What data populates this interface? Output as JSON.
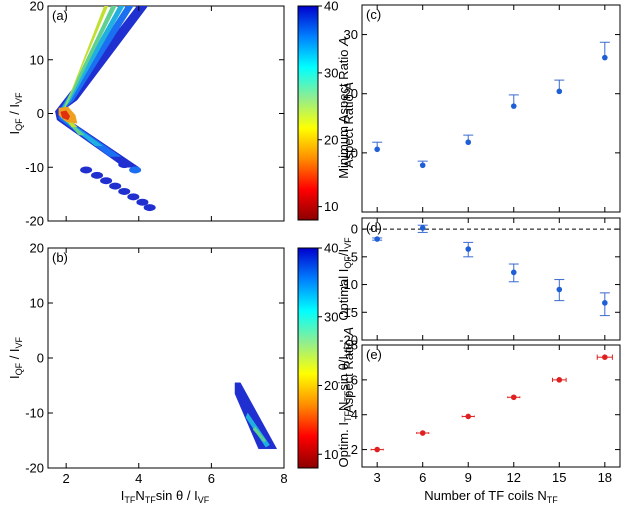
{
  "figure": {
    "panel_labels": [
      "(a)",
      "(b)",
      "(c)",
      "(d)",
      "(e)"
    ]
  },
  "chart_data": [
    {
      "id": "a",
      "type": "heatmap",
      "title": "(a)",
      "xlabel": "",
      "ylabel_main": "I",
      "ylabel_sub1": "QF",
      "ylabel_mid": " / I",
      "ylabel_sub2": "VF",
      "xlim": [
        1.5,
        8
      ],
      "ylim": [
        -20,
        20
      ],
      "xticks": [
        2,
        4,
        6,
        8
      ],
      "xtick_labels": [
        "",
        "",
        "",
        ""
      ],
      "yticks": [
        -20,
        -10,
        0,
        10,
        20
      ],
      "ytick_labels": [
        "-20",
        "-10",
        "0",
        "10",
        "20"
      ],
      "bands": [
        {
          "color": "#2030d0",
          "points": [
            [
              3.95,
              20
            ],
            [
              4.25,
              20
            ],
            [
              2.3,
              2.5
            ],
            [
              1.85,
              0.3
            ],
            [
              2.2,
              -1.8
            ],
            [
              4.0,
              -10
            ],
            [
              3.6,
              -10
            ],
            [
              1.75,
              -1.2
            ],
            [
              1.7,
              0.4
            ]
          ]
        },
        {
          "color": "#1a70f0",
          "points": [
            [
              3.65,
              20
            ],
            [
              3.85,
              20
            ],
            [
              2.2,
              2.4
            ],
            [
              1.85,
              0.3
            ],
            [
              2.1,
              -1.5
            ],
            [
              3.5,
              -8
            ],
            [
              3.2,
              -8
            ],
            [
              1.8,
              -1.0
            ],
            [
              1.8,
              0.5
            ]
          ]
        },
        {
          "color": "#20b0e0",
          "points": [
            [
              3.45,
              20
            ],
            [
              3.6,
              20
            ],
            [
              2.1,
              2.2
            ],
            [
              1.85,
              0.4
            ],
            [
              2.0,
              -1.2
            ],
            [
              3.0,
              -6
            ],
            [
              2.8,
              -6
            ],
            [
              1.85,
              -0.8
            ],
            [
              1.85,
              0.6
            ]
          ]
        },
        {
          "color": "#60d090",
          "points": [
            [
              3.25,
              20
            ],
            [
              3.38,
              20
            ],
            [
              2.05,
              2.0
            ],
            [
              1.9,
              0.5
            ],
            [
              2.0,
              -1.0
            ],
            [
              2.5,
              -4
            ],
            [
              2.35,
              -4
            ],
            [
              1.9,
              -0.6
            ],
            [
              1.9,
              0.7
            ]
          ]
        },
        {
          "color": "#c0e030",
          "points": [
            [
              3.05,
              20
            ],
            [
              3.15,
              20
            ],
            [
              2.0,
              1.8
            ],
            [
              1.95,
              0.4
            ],
            [
              2.05,
              -0.8
            ],
            [
              2.3,
              -2.5
            ],
            [
              2.15,
              -2.5
            ],
            [
              1.95,
              -0.4
            ],
            [
              1.95,
              0.7
            ]
          ]
        },
        {
          "color": "#f0a020",
          "points": [
            [
              1.8,
              1.0
            ],
            [
              2.05,
              1.2
            ],
            [
              2.25,
              -0.3
            ],
            [
              2.3,
              -1.8
            ],
            [
              2.0,
              -1.5
            ],
            [
              1.8,
              -0.3
            ]
          ]
        },
        {
          "color": "#e03010",
          "points": [
            [
              1.85,
              0.3
            ],
            [
              2.0,
              0.5
            ],
            [
              2.1,
              -0.5
            ],
            [
              2.05,
              -1.2
            ],
            [
              1.9,
              -0.8
            ]
          ]
        }
      ],
      "blobs": [
        {
          "x": 2.55,
          "y": -10.5,
          "color": "#2030d0"
        },
        {
          "x": 2.85,
          "y": -11.5,
          "color": "#2030d0"
        },
        {
          "x": 3.1,
          "y": -12.5,
          "color": "#2030d0"
        },
        {
          "x": 3.35,
          "y": -13.5,
          "color": "#2030d0"
        },
        {
          "x": 3.6,
          "y": -14.5,
          "color": "#2030d0"
        },
        {
          "x": 3.85,
          "y": -15.5,
          "color": "#2030d0"
        },
        {
          "x": 4.1,
          "y": -16.5,
          "color": "#2030d0"
        },
        {
          "x": 4.3,
          "y": -17.5,
          "color": "#2030d0"
        },
        {
          "x": 3.6,
          "y": -9.5,
          "color": "#2030d0"
        },
        {
          "x": 3.9,
          "y": -10.5,
          "color": "#1a70f0"
        }
      ]
    },
    {
      "id": "a-colorbar",
      "type": "colorbar",
      "label_main": "Aspect Ratio ",
      "label_italic": "A",
      "range": [
        8,
        40
      ],
      "ticks": [
        10,
        20,
        30,
        40
      ],
      "tick_labels": [
        "10",
        "20",
        "30",
        "40"
      ],
      "colors": [
        "#8b0000",
        "#ff0000",
        "#ff8c00",
        "#ffff00",
        "#90ee90",
        "#00ffff",
        "#0080ff",
        "#0000cd"
      ]
    },
    {
      "id": "b",
      "type": "heatmap",
      "title": "(b)",
      "xlabel_parts": [
        "I",
        "TF",
        "N",
        "TF",
        "sin θ / I",
        "VF"
      ],
      "ylabel_main": "I",
      "ylabel_sub1": "QF",
      "ylabel_mid": " / I",
      "ylabel_sub2": "VF",
      "xlim": [
        1.5,
        8
      ],
      "ylim": [
        -20,
        20
      ],
      "xticks": [
        2,
        4,
        6,
        8
      ],
      "xtick_labels": [
        "2",
        "4",
        "6",
        "8"
      ],
      "yticks": [
        -20,
        -10,
        0,
        10,
        20
      ],
      "ytick_labels": [
        "-20",
        "-10",
        "0",
        "10",
        "20"
      ],
      "bands": [
        {
          "color": "#2030d0",
          "points": [
            [
              6.65,
              -4.5
            ],
            [
              6.8,
              -4.5
            ],
            [
              7.8,
              -16.5
            ],
            [
              7.3,
              -16.5
            ],
            [
              6.65,
              -6.5
            ]
          ]
        },
        {
          "color": "#20b0e0",
          "points": [
            [
              7.0,
              -10
            ],
            [
              7.6,
              -15.8
            ],
            [
              7.5,
              -16.2
            ],
            [
              6.95,
              -10.8
            ]
          ]
        },
        {
          "color": "#60d090",
          "points": [
            [
              7.2,
              -12.5
            ],
            [
              7.5,
              -15
            ],
            [
              7.45,
              -15.3
            ],
            [
              7.15,
              -13
            ]
          ]
        }
      ],
      "blobs": []
    },
    {
      "id": "b-colorbar",
      "type": "colorbar",
      "label_main": "Aspect Ratio ",
      "label_italic": "A",
      "range": [
        8,
        40
      ],
      "ticks": [
        10,
        20,
        30,
        40
      ],
      "tick_labels": [
        "10",
        "20",
        "30",
        "40"
      ],
      "colors": [
        "#8b0000",
        "#ff0000",
        "#ff8c00",
        "#ffff00",
        "#90ee90",
        "#00ffff",
        "#0080ff",
        "#0000cd"
      ]
    },
    {
      "id": "c",
      "type": "scatter",
      "title": "(c)",
      "ylabel_main": "Minimum Aspect Ratio ",
      "ylabel_italic": "A",
      "xlim": [
        2,
        19
      ],
      "ylim": [
        0,
        35
      ],
      "xticks": [
        3,
        6,
        9,
        12,
        15,
        18
      ],
      "yticks": [
        10,
        20,
        30
      ],
      "ytick_labels": [
        "10",
        "20",
        "30"
      ],
      "x": [
        3,
        6,
        9,
        12,
        15,
        18
      ],
      "y": [
        10.6,
        7.9,
        11.8,
        17.9,
        20.4,
        26.1
      ],
      "yerr_low": [
        0,
        0,
        0,
        0,
        0,
        0
      ],
      "yerr_high": [
        1.2,
        0.7,
        1.2,
        1.9,
        1.9,
        2.6
      ],
      "marker_color": "#1f5fd6",
      "error_color": "#3a6ad0"
    },
    {
      "id": "d",
      "type": "scatter",
      "title": "(d)",
      "ylabel_main": "Optimal  I",
      "ylabel_sub1": "QF",
      "ylabel_mid": "/I",
      "ylabel_sub2": "VF",
      "xlim": [
        2,
        19
      ],
      "ylim": [
        -20,
        2
      ],
      "xticks": [
        3,
        6,
        9,
        12,
        15,
        18
      ],
      "yticks": [
        -20,
        -15,
        -10,
        -5,
        0
      ],
      "ytick_labels": [
        "-20",
        "-15",
        "-10",
        "-5",
        "0"
      ],
      "reference_line": 0,
      "x": [
        3,
        6,
        9,
        12,
        15,
        18
      ],
      "y": [
        -1.8,
        0.2,
        -3.6,
        -7.8,
        -10.9,
        -13.3
      ],
      "yerr_low": [
        0.2,
        0.8,
        1.4,
        1.7,
        2.0,
        2.3
      ],
      "yerr_high": [
        0.2,
        0.5,
        1.2,
        1.5,
        1.8,
        1.8
      ],
      "marker_color": "#1f5fd6",
      "error_color": "#3a6ad0"
    },
    {
      "id": "e",
      "type": "scatter",
      "title": "(e)",
      "xlabel_main": "Number of TF coils N",
      "xlabel_sub": "TF",
      "ylabel_parts": [
        "Optim. I",
        "TF",
        "N",
        "TF",
        "sin θ/I",
        "VF"
      ],
      "xlim": [
        2,
        19
      ],
      "ylim": [
        1,
        8
      ],
      "xticks": [
        3,
        6,
        9,
        12,
        15,
        18
      ],
      "xtick_labels": [
        "3",
        "6",
        "9",
        "12",
        "15",
        "18"
      ],
      "yticks": [
        2,
        4,
        6,
        8
      ],
      "ytick_labels": [
        "2",
        "4",
        "6",
        "8"
      ],
      "x": [
        3,
        6,
        9,
        12,
        15,
        18
      ],
      "y": [
        2.0,
        2.95,
        3.9,
        5.0,
        6.0,
        7.3
      ],
      "xerr": [
        0.4,
        0.4,
        0.4,
        0.4,
        0.45,
        0.5
      ],
      "yerr": [
        0.05,
        0.05,
        0.05,
        0.05,
        0.12,
        0.15
      ],
      "marker_color": "#e02020",
      "error_color": "#e02020"
    }
  ]
}
